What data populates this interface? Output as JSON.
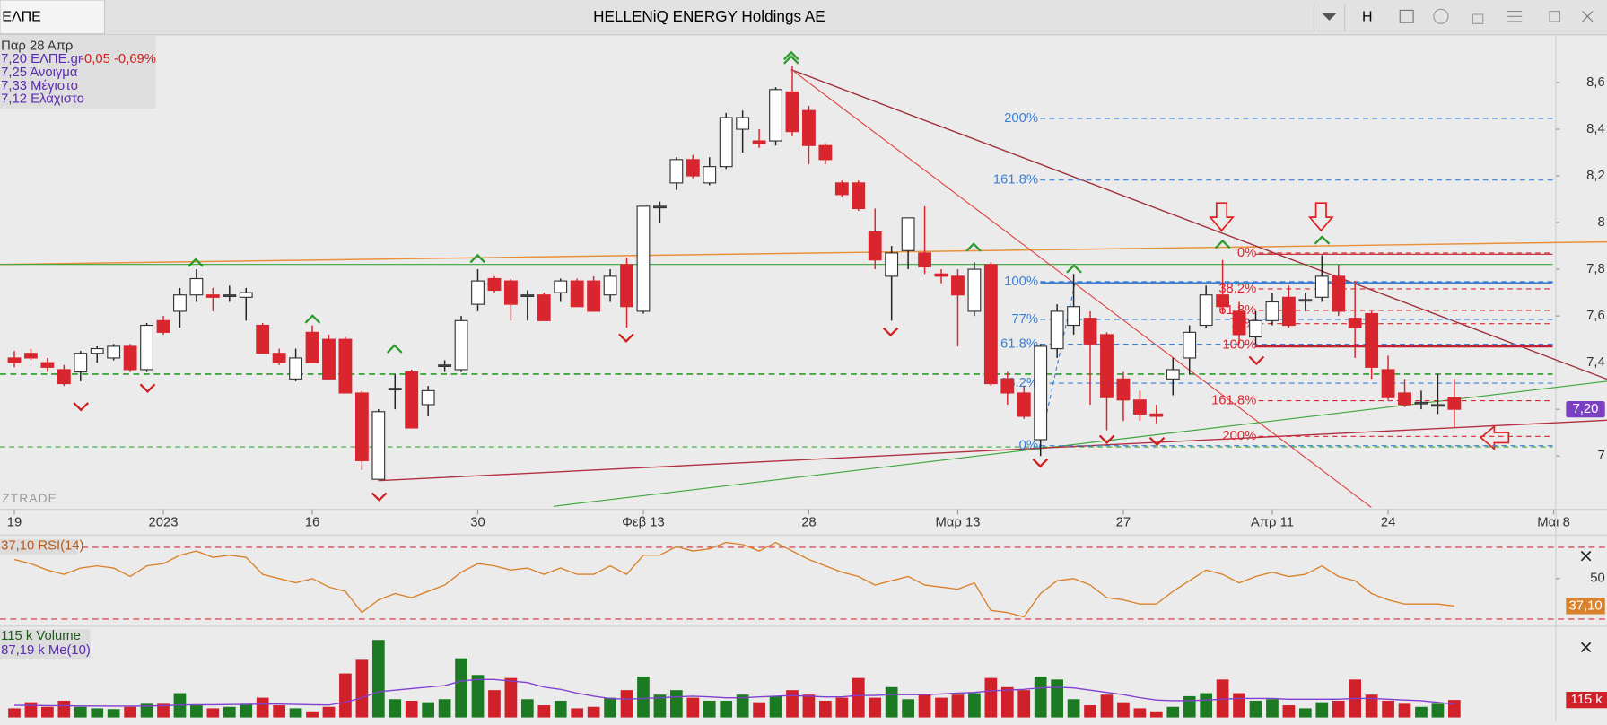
{
  "window": {
    "tab": "ΕΛΠΕ",
    "title": "HELLENiQ ENERGY Holdings AE",
    "button": "H",
    "watermark": "ZTRADE",
    "info": [
      "Παρ 28 Απρ",
      "7,20 ΕΛΠΕ.gr",
      "-0,05 -0,69%",
      "7,25 Άνοιγμα",
      "7,33 Μέγιστο",
      "7,12 Ελάχιστο"
    ]
  },
  "chart_data": [
    {
      "type": "candlestick",
      "categories": [
        "19",
        null,
        null,
        null,
        null,
        null,
        null,
        null,
        null,
        "2023",
        null,
        null,
        null,
        null,
        null,
        null,
        null,
        null,
        "16",
        null,
        null,
        null,
        null,
        null,
        null,
        null,
        null,
        null,
        "30",
        null,
        null,
        null,
        null,
        null,
        null,
        null,
        null,
        null,
        "Φεβ 13",
        null,
        null,
        null,
        null,
        null,
        null,
        null,
        null,
        null,
        "28",
        null,
        null,
        null,
        null,
        null,
        null,
        null,
        null,
        "Μαρ 13",
        null,
        null,
        null,
        null,
        null,
        null,
        null,
        null,
        null,
        "27",
        null,
        null,
        null,
        null,
        null,
        null,
        null,
        null,
        "Απρ 11",
        null,
        null,
        null,
        null,
        null,
        null,
        "24",
        null,
        null,
        null,
        null,
        null,
        null,
        null,
        null,
        null,
        "Μαι 8"
      ],
      "open": [
        7.42,
        7.44,
        7.4,
        7.37,
        7.36,
        7.44,
        7.42,
        7.47,
        7.37,
        7.58,
        7.62,
        7.69,
        7.69,
        7.69,
        7.68,
        7.56,
        7.44,
        7.33,
        7.53,
        7.5,
        7.5,
        7.27,
        6.9,
        7.29,
        7.36,
        7.22,
        7.39,
        7.37,
        7.65,
        7.76,
        7.75,
        7.69,
        7.69,
        7.7,
        7.75,
        7.75,
        7.69,
        7.82,
        7.62,
        8.07,
        8.17,
        8.27,
        8.17,
        8.24,
        8.4,
        8.35,
        8.35,
        8.56,
        8.48,
        8.33,
        8.17,
        8.17,
        7.96,
        7.77,
        7.88,
        7.87,
        7.78,
        7.77,
        7.62,
        7.82,
        7.33,
        7.27,
        7.07,
        7.46,
        7.56,
        7.59,
        7.52,
        7.33,
        7.24,
        7.18,
        7.33,
        7.42,
        7.56,
        7.69,
        7.62,
        7.51,
        7.58,
        7.68,
        7.67,
        7.68,
        7.77,
        7.59,
        7.61,
        7.37,
        7.27,
        7.23,
        7.22,
        7.25,
        null,
        null,
        null,
        null,
        null,
        null
      ],
      "high": [
        7.45,
        7.46,
        7.42,
        7.39,
        7.45,
        7.47,
        7.48,
        7.48,
        7.57,
        7.6,
        7.72,
        7.8,
        7.72,
        7.73,
        7.72,
        7.57,
        7.46,
        7.46,
        7.56,
        7.52,
        7.51,
        7.28,
        7.2,
        7.35,
        7.37,
        7.3,
        7.41,
        7.6,
        7.8,
        7.77,
        7.76,
        7.71,
        7.7,
        7.76,
        7.76,
        7.77,
        7.8,
        7.85,
        8.07,
        8.09,
        8.28,
        8.29,
        8.28,
        8.47,
        8.48,
        8.4,
        8.58,
        8.67,
        8.5,
        8.34,
        8.18,
        8.18,
        8.06,
        7.9,
        8.02,
        8.07,
        7.8,
        7.8,
        7.83,
        7.83,
        7.36,
        7.3,
        7.48,
        7.65,
        7.78,
        7.62,
        7.53,
        7.36,
        7.28,
        7.22,
        7.42,
        7.56,
        7.73,
        7.84,
        7.66,
        7.62,
        7.7,
        7.73,
        7.7,
        7.86,
        7.82,
        7.75,
        7.62,
        7.43,
        7.33,
        7.28,
        7.35,
        7.33,
        null,
        null,
        null,
        null,
        null,
        null
      ],
      "low": [
        7.38,
        7.41,
        7.36,
        7.3,
        7.32,
        7.4,
        7.41,
        7.36,
        7.36,
        7.52,
        7.55,
        7.66,
        7.62,
        7.66,
        7.58,
        7.44,
        7.39,
        7.32,
        7.4,
        7.33,
        7.27,
        6.94,
        6.9,
        7.2,
        7.12,
        7.17,
        7.36,
        7.36,
        7.62,
        7.7,
        7.58,
        7.58,
        7.58,
        7.66,
        7.64,
        7.62,
        7.66,
        7.55,
        7.61,
        8.0,
        8.14,
        8.19,
        8.16,
        8.23,
        8.3,
        8.32,
        8.33,
        8.37,
        8.25,
        8.25,
        8.11,
        8.05,
        7.8,
        7.58,
        7.8,
        7.78,
        7.74,
        7.47,
        7.6,
        7.3,
        7.22,
        7.16,
        7.0,
        7.42,
        7.52,
        7.22,
        7.11,
        7.15,
        7.15,
        7.14,
        7.26,
        7.35,
        7.55,
        7.61,
        7.48,
        7.48,
        7.56,
        7.55,
        7.62,
        7.66,
        7.6,
        7.42,
        7.33,
        7.24,
        7.21,
        7.2,
        7.18,
        7.12,
        null,
        null,
        null,
        null,
        null,
        null
      ],
      "close": [
        7.4,
        7.42,
        7.38,
        7.31,
        7.44,
        7.46,
        7.47,
        7.37,
        7.56,
        7.53,
        7.69,
        7.76,
        7.68,
        7.69,
        7.7,
        7.44,
        7.4,
        7.42,
        7.4,
        7.33,
        7.27,
        6.98,
        7.19,
        7.29,
        7.12,
        7.28,
        7.39,
        7.58,
        7.75,
        7.71,
        7.65,
        7.69,
        7.58,
        7.75,
        7.64,
        7.62,
        7.77,
        7.64,
        8.07,
        8.07,
        8.27,
        8.2,
        8.24,
        8.45,
        8.45,
        8.34,
        8.57,
        8.39,
        8.33,
        8.27,
        8.12,
        8.06,
        7.84,
        7.87,
        8.02,
        7.81,
        7.77,
        7.69,
        7.8,
        7.31,
        7.27,
        7.17,
        7.47,
        7.62,
        7.64,
        7.48,
        7.25,
        7.24,
        7.18,
        7.17,
        7.37,
        7.53,
        7.69,
        7.64,
        7.52,
        7.58,
        7.66,
        7.56,
        7.67,
        7.77,
        7.62,
        7.55,
        7.38,
        7.25,
        7.22,
        7.23,
        7.22,
        7.2,
        null,
        null,
        null,
        null,
        null,
        null
      ],
      "up_color": "#ffffff",
      "down_color": "#d9262e",
      "flat_color": "#555555",
      "ylim": [
        6.78,
        8.8
      ],
      "yticks": [
        7,
        {
          "value": 7.2,
          "label": "7,2"
        },
        {
          "value": 7.4,
          "label": "7,4"
        },
        {
          "value": 7.6,
          "label": "7,6"
        },
        {
          "value": 7.8,
          "label": "7,8"
        },
        8,
        {
          "value": 8.2,
          "label": "8,2"
        },
        {
          "value": 8.4,
          "label": "8,4"
        },
        {
          "value": 8.6,
          "label": "8,6"
        }
      ],
      "last_label": "7,20",
      "last_color": "#7b3fc4",
      "fibonacci": [
        {
          "color": "#3a7fd5",
          "levels": [
            {
              "label": "200%",
              "value": 8.446
            },
            {
              "label": "161.8%",
              "value": 8.182
            },
            {
              "label": "100%",
              "value": 7.747
            },
            {
              "label": "77%",
              "value": 7.585
            },
            {
              "label": "61.8%",
              "value": 7.479
            },
            {
              "label": "38.2%",
              "value": 7.312
            },
            {
              "label": "0%",
              "value": 7.044
            }
          ]
        },
        {
          "color": "#d9262e",
          "levels": [
            {
              "label": "0%",
              "value": 7.87
            },
            {
              "label": "38.2%",
              "value": 7.716
            },
            {
              "label": "61.8%",
              "value": 7.624
            },
            {
              "label": "77%",
              "value": 7.567
            },
            {
              "label": "100%",
              "value": 7.475
            },
            {
              "label": "161.8%",
              "value": 7.237
            },
            {
              "label": "200%",
              "value": 7.084
            }
          ]
        }
      ]
    },
    {
      "type": "line",
      "legend": "37,10 RSI(14)",
      "color": "#d9822b",
      "values": [
        59,
        57,
        54,
        52,
        55,
        56,
        55,
        51,
        56,
        57,
        61,
        63,
        60,
        61,
        60,
        52,
        50,
        48,
        50,
        46,
        44,
        34,
        40,
        43,
        41,
        44,
        47,
        53,
        57,
        56,
        54,
        55,
        52,
        55,
        52,
        52,
        56,
        52,
        61,
        61,
        65,
        63,
        64,
        67,
        66,
        63,
        67,
        63,
        59,
        56,
        53,
        51,
        47,
        49,
        51,
        47,
        46,
        45,
        48,
        35,
        34,
        32,
        43,
        49,
        50,
        47,
        41,
        40,
        38,
        38,
        44,
        49,
        54,
        52,
        48,
        51,
        53,
        51,
        52,
        56,
        51,
        49,
        43,
        40,
        38,
        38,
        38,
        37.1,
        null,
        null,
        null,
        null,
        null,
        null
      ],
      "ylim": [
        27.6,
        70.5
      ],
      "yticks": [
        50
      ],
      "last_label": "37,10"
    },
    {
      "type": "bar",
      "legend": [
        "115 k Volume",
        "87,19 k Me(10)"
      ],
      "up_color": "#1c7a22",
      "down_color": "#d0202a",
      "values": [
        60,
        100,
        70,
        110,
        70,
        60,
        55,
        70,
        90,
        90,
        160,
        80,
        60,
        70,
        90,
        130,
        80,
        60,
        40,
        70,
        290,
        380,
        511,
        120,
        110,
        100,
        120,
        390,
        280,
        180,
        260,
        120,
        80,
        110,
        60,
        70,
        130,
        180,
        270,
        150,
        180,
        130,
        110,
        110,
        150,
        100,
        140,
        180,
        150,
        110,
        130,
        260,
        130,
        200,
        120,
        150,
        130,
        150,
        160,
        260,
        200,
        180,
        270,
        250,
        120,
        80,
        150,
        100,
        60,
        40,
        70,
        140,
        160,
        250,
        160,
        110,
        120,
        80,
        60,
        100,
        110,
        250,
        150,
        110,
        90,
        70,
        90,
        115,
        null,
        null,
        null,
        null,
        null,
        null
      ],
      "average": {
        "color": "#8040d0",
        "values": [
          80,
          80,
          78,
          78,
          76,
          76,
          75,
          75,
          76,
          78,
          82,
          84,
          84,
          85,
          86,
          88,
          88,
          86,
          84,
          82,
          100,
          130,
          170,
          180,
          190,
          200,
          210,
          240,
          250,
          250,
          240,
          230,
          200,
          185,
          160,
          140,
          125,
          120,
          125,
          130,
          135,
          140,
          135,
          130,
          130,
          135,
          140,
          145,
          140,
          135,
          135,
          145,
          145,
          150,
          150,
          150,
          155,
          160,
          165,
          175,
          180,
          185,
          195,
          200,
          195,
          180,
          165,
          150,
          130,
          115,
          110,
          110,
          115,
          120,
          125,
          125,
          125,
          120,
          120,
          120,
          120,
          125,
          125,
          120,
          115,
          110,
          100,
          87.19,
          null,
          null,
          null,
          null,
          null,
          null
        ]
      },
      "ylim": [
        0,
        595
      ],
      "last_label": "115 k"
    }
  ]
}
